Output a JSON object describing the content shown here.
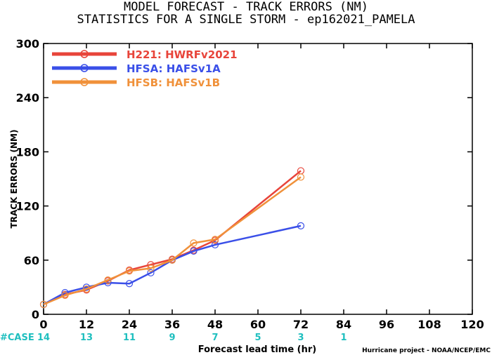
{
  "title_line1": "MODEL FORECAST - TRACK ERRORS (NM)",
  "title_line2": "STATISTICS FOR A SINGLE STORM - ep162021_PAMELA",
  "credit": "Hurricane project - NOAA/NCEP/EMC",
  "case_label": "#CASE",
  "case_counts": [
    {
      "x": 0,
      "n": "14"
    },
    {
      "x": 12,
      "n": "13"
    },
    {
      "x": 24,
      "n": "11"
    },
    {
      "x": 36,
      "n": "9"
    },
    {
      "x": 48,
      "n": "7"
    },
    {
      "x": 60,
      "n": "5"
    },
    {
      "x": 72,
      "n": "3"
    },
    {
      "x": 84,
      "n": "1"
    }
  ],
  "chart_data": {
    "type": "line",
    "xlabel": "Forecast lead time (hr)",
    "ylabel": "TRACK ERRORS (NM)",
    "xlim": [
      0,
      120
    ],
    "ylim": [
      0,
      300
    ],
    "xticks": [
      "0",
      "12",
      "24",
      "36",
      "48",
      "60",
      "72",
      "84",
      "96",
      "108",
      "120"
    ],
    "yticks": [
      "0",
      "60",
      "120",
      "180",
      "240",
      "300"
    ],
    "legend_position": "top-left",
    "series": [
      {
        "name": "H221: HWRFv2021",
        "color": "#e8443a",
        "x": [
          0,
          6,
          12,
          18,
          24,
          30,
          36,
          42,
          48,
          72
        ],
        "y": [
          11,
          22,
          27,
          37,
          49,
          55,
          61,
          71,
          82,
          159
        ]
      },
      {
        "name": "HFSA: HAFSv1A",
        "color": "#3a4fe8",
        "x": [
          0,
          6,
          12,
          18,
          24,
          30,
          36,
          42,
          48,
          72
        ],
        "y": [
          11,
          24,
          30,
          35,
          34,
          46,
          60,
          70,
          77,
          98
        ]
      },
      {
        "name": "HFSB: HAFSv1B",
        "color": "#f0913a",
        "x": [
          0,
          6,
          12,
          18,
          24,
          30,
          36,
          42,
          48,
          72
        ],
        "y": [
          11,
          21,
          28,
          38,
          48,
          51,
          60,
          79,
          83,
          152
        ]
      }
    ]
  }
}
